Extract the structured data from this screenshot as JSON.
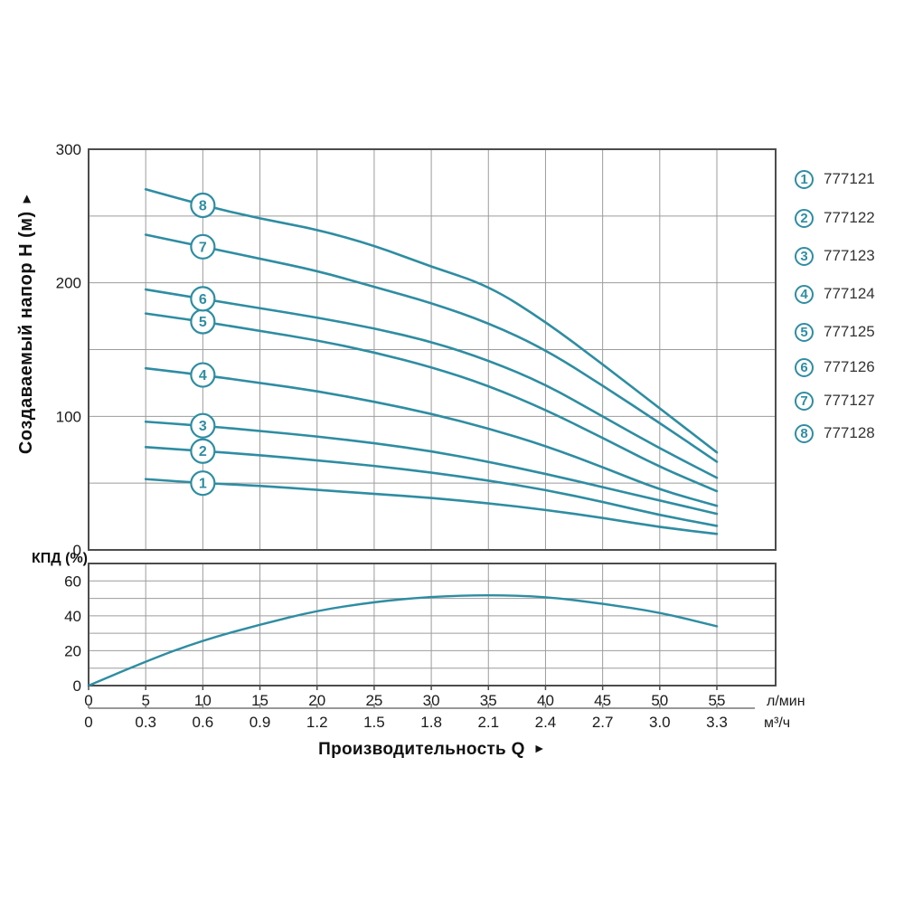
{
  "axis": {
    "y_label": "Создаваемый напор Н (м)",
    "x_label": "Производительность Q",
    "arrow": "►",
    "eff_label": "КПД (%)"
  },
  "colors": {
    "curve": "#2e8da2",
    "grid": "#9c9c9c",
    "frame": "#4c4c4c",
    "text": "#1a1a1a",
    "legend_text": "#333333"
  },
  "chart_data": {
    "type": "line",
    "title": "",
    "x_axis": {
      "label": "Производительность Q",
      "primary_unit": "л/мин",
      "secondary_unit": "м³/ч",
      "primary_ticks": [
        0,
        5,
        10,
        15,
        20,
        25,
        30,
        35,
        40,
        45,
        50,
        55
      ],
      "secondary_ticks": [
        "0",
        "0.3",
        "0.6",
        "0.9",
        "1.2",
        "1.5",
        "1.8",
        "2.1",
        "2.4",
        "2.7",
        "3.0",
        "3.3"
      ],
      "xlim_lmin": [
        0,
        60
      ]
    },
    "head_chart": {
      "ylabel": "Создаваемый напор Н (м)",
      "ylim": [
        0,
        300
      ],
      "ytick_labels": [
        0,
        100,
        200,
        300
      ],
      "grid_step_y": 50,
      "grid_on": true,
      "marker_q": 10,
      "q": [
        5,
        10,
        15,
        20,
        25,
        30,
        35,
        40,
        45,
        50,
        55
      ],
      "series": [
        {
          "num": "1",
          "article": "777121",
          "h": [
            53,
            50,
            48,
            45,
            42,
            39,
            35,
            30,
            24,
            17,
            12
          ]
        },
        {
          "num": "2",
          "article": "777122",
          "h": [
            77,
            74,
            71,
            67,
            63,
            58,
            52,
            45,
            36,
            26,
            18
          ]
        },
        {
          "num": "3",
          "article": "777123",
          "h": [
            96,
            93,
            89,
            85,
            80,
            74,
            66,
            57,
            47,
            37,
            27
          ]
        },
        {
          "num": "4",
          "article": "777124",
          "h": [
            136,
            131,
            125,
            119,
            111,
            102,
            91,
            78,
            62,
            45,
            33
          ]
        },
        {
          "num": "5",
          "article": "777125",
          "h": [
            177,
            171,
            164,
            157,
            148,
            137,
            123,
            105,
            84,
            62,
            44
          ]
        },
        {
          "num": "6",
          "article": "777126",
          "h": [
            195,
            188,
            181,
            174,
            166,
            156,
            142,
            124,
            100,
            76,
            54
          ]
        },
        {
          "num": "7",
          "article": "777127",
          "h": [
            236,
            227,
            218,
            209,
            197,
            185,
            170,
            150,
            123,
            95,
            66
          ]
        },
        {
          "num": "8",
          "article": "777128",
          "h": [
            270,
            258,
            248,
            240,
            228,
            212,
            198,
            171,
            139,
            106,
            73
          ]
        }
      ]
    },
    "efficiency_chart": {
      "ylabel": "КПД (%)",
      "ylim": [
        0,
        70
      ],
      "ytick_labels": [
        0,
        20,
        40,
        60
      ],
      "grid_step_y": 10,
      "grid_on": true,
      "q": [
        0,
        5,
        10,
        15,
        20,
        25,
        30,
        35,
        40,
        45,
        50,
        55
      ],
      "values": [
        0,
        14,
        26,
        35,
        43,
        48,
        51,
        52,
        51,
        47,
        42,
        34
      ]
    },
    "legend": [
      {
        "num": "1",
        "code": "777121"
      },
      {
        "num": "2",
        "code": "777122"
      },
      {
        "num": "3",
        "code": "777123"
      },
      {
        "num": "4",
        "code": "777124"
      },
      {
        "num": "5",
        "code": "777125"
      },
      {
        "num": "6",
        "code": "777126"
      },
      {
        "num": "7",
        "code": "777127"
      },
      {
        "num": "8",
        "code": "777128"
      }
    ],
    "legend_position": "right"
  }
}
